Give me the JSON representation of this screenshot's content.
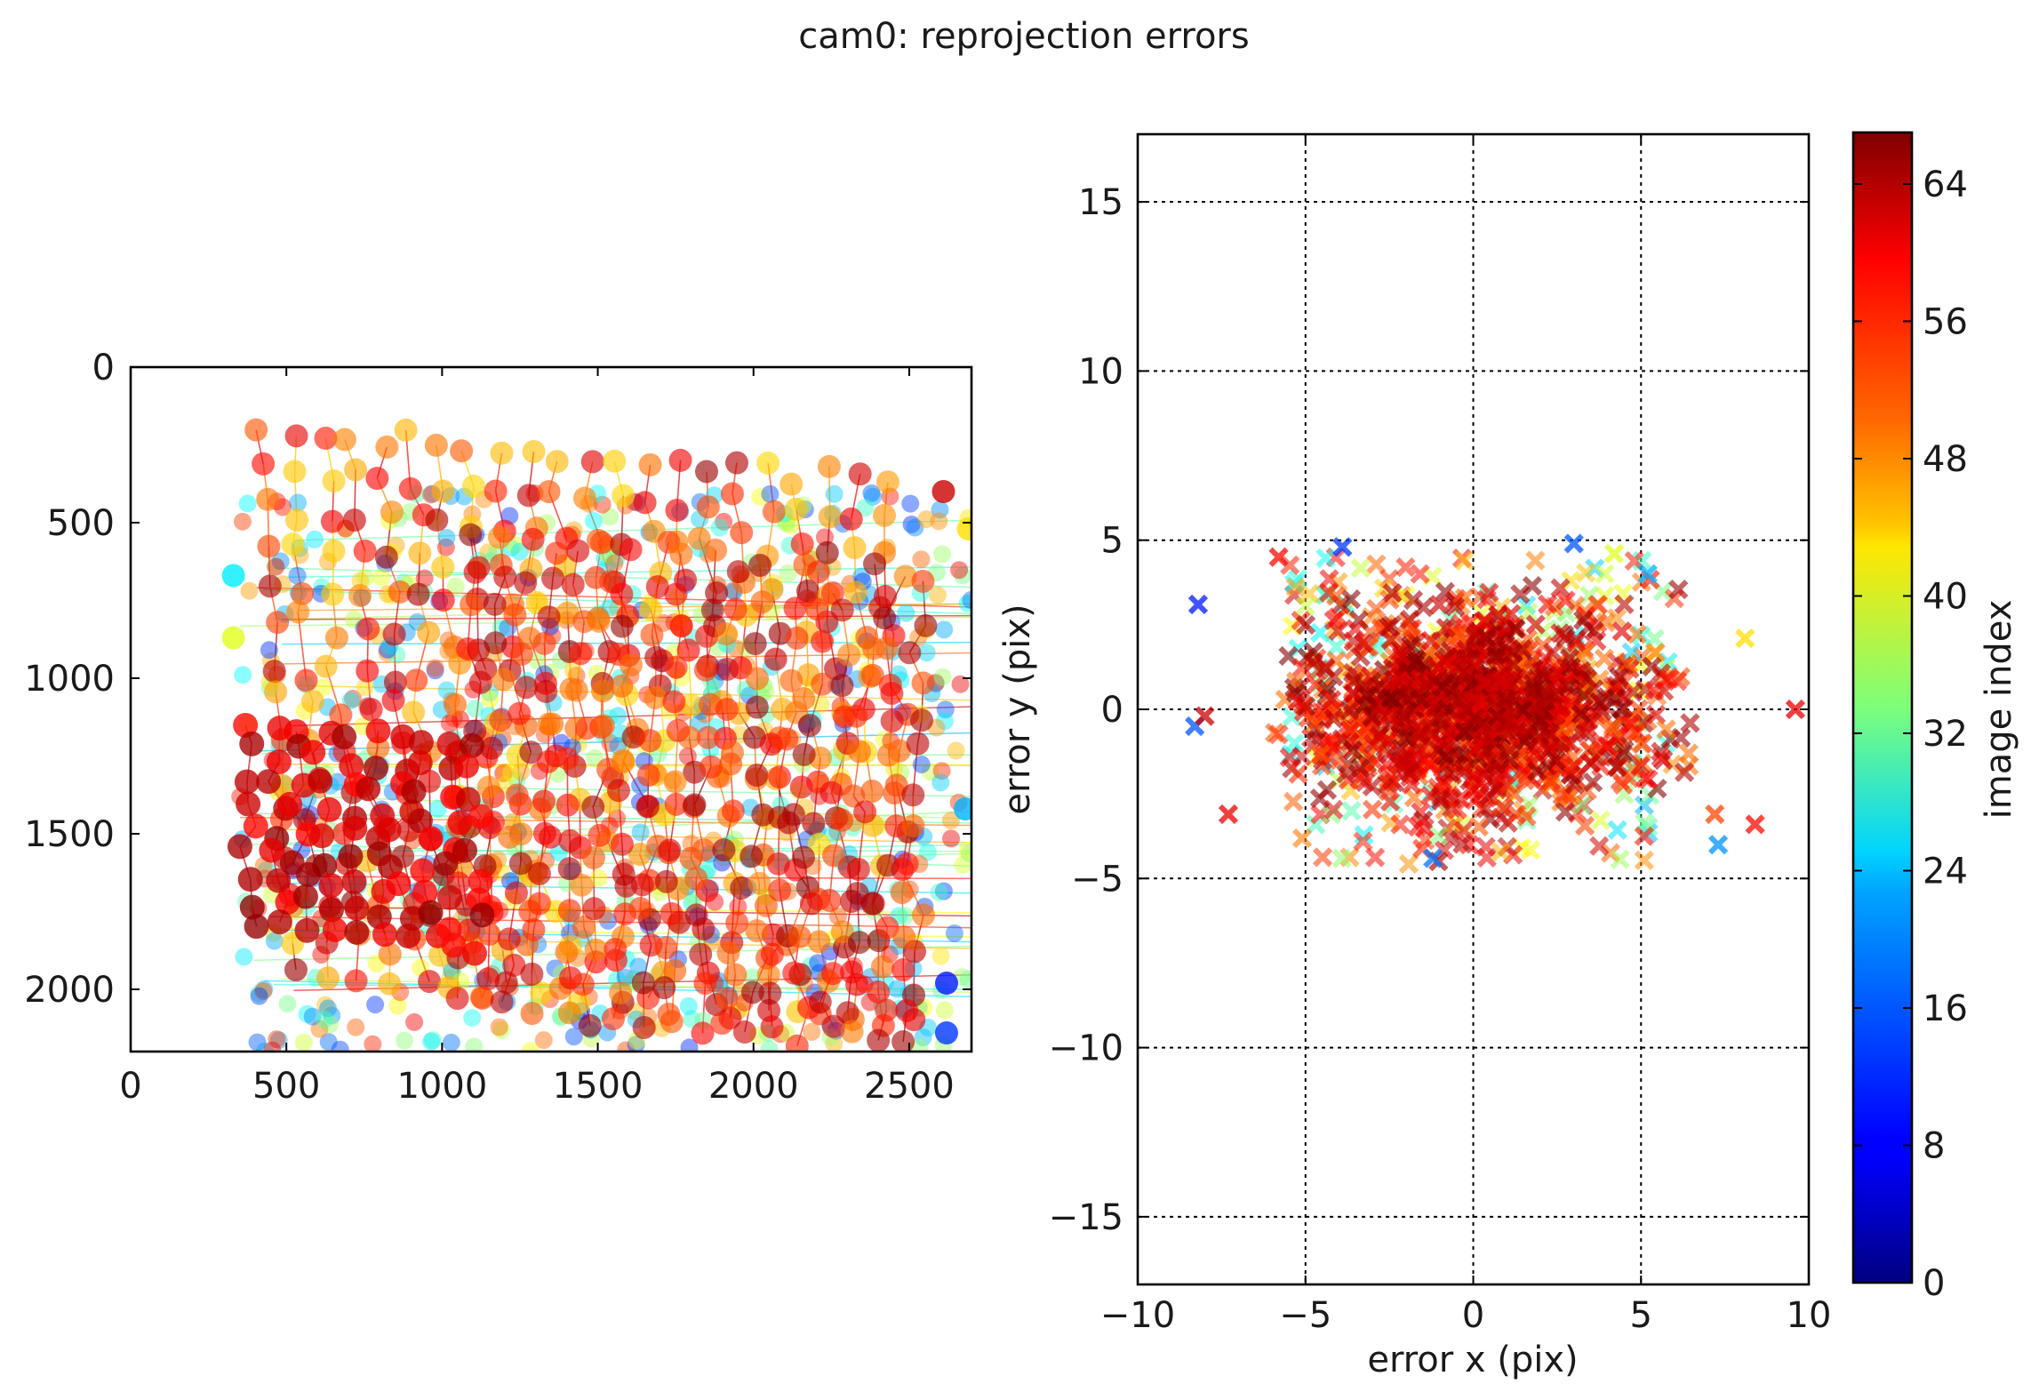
{
  "figure": {
    "title": "cam0: reprojection errors"
  },
  "chart_data": [
    {
      "type": "scatter",
      "subtype": "corner-tracks",
      "marker": "circle",
      "connected_lines": true,
      "x_range": [
        0,
        2700
      ],
      "y_range": [
        0,
        2200
      ],
      "y_inverted": true,
      "x_ticks": [
        "0",
        "500",
        "1000",
        "1500",
        "2000",
        "2500"
      ],
      "y_ticks": [
        "0",
        "500",
        "1000",
        "1500",
        "2000"
      ],
      "xlabel": "",
      "ylabel": "",
      "grid": false,
      "color_by": "image index",
      "point_regions": [
        {
          "x": [
            330,
            2700
          ],
          "y": [
            150,
            2200
          ],
          "index_range": [
            0,
            66
          ],
          "description": "all corner observations"
        },
        {
          "x": [
            300,
            1200
          ],
          "y": [
            1100,
            2000
          ],
          "index_range": [
            56,
            66
          ],
          "description": "dense dark-red grid"
        }
      ]
    },
    {
      "type": "scatter",
      "subtype": "error-distribution",
      "marker": "x",
      "x_range": [
        -10,
        10
      ],
      "y_range": [
        -17,
        17
      ],
      "x_ticks": [
        "−10",
        "−5",
        "0",
        "5",
        "10"
      ],
      "y_ticks": [
        "−15",
        "−10",
        "−5",
        "0",
        "5",
        "10",
        "15"
      ],
      "xlabel": "error x (pix)",
      "ylabel": "error y (pix)",
      "grid": true,
      "color_by": "image index",
      "bulk_cloud": {
        "x_range": [
          -5.5,
          6
        ],
        "y_range": [
          -4.6,
          4.6
        ]
      },
      "notable_points": [
        {
          "x": -8.2,
          "y": 3.1,
          "index": 10
        },
        {
          "x": -8.3,
          "y": -0.5,
          "index": 14
        },
        {
          "x": -8.0,
          "y": -0.2,
          "index": 62
        },
        {
          "x": 9.6,
          "y": 0.0,
          "index": 60
        },
        {
          "x": 8.4,
          "y": -3.4,
          "index": 58
        },
        {
          "x": 7.2,
          "y": -3.1,
          "index": 54
        },
        {
          "x": 7.3,
          "y": -4.0,
          "index": 18
        },
        {
          "x": -7.3,
          "y": -3.1,
          "index": 60
        },
        {
          "x": -3.9,
          "y": 4.8,
          "index": 12
        },
        {
          "x": 3.0,
          "y": 4.9,
          "index": 14
        },
        {
          "x": 5.2,
          "y": 4.0,
          "index": 20
        },
        {
          "x": -1.2,
          "y": -4.4,
          "index": 16
        },
        {
          "x": 8.1,
          "y": 2.1,
          "index": 44
        },
        {
          "x": -5.8,
          "y": 4.5,
          "index": 58
        },
        {
          "x": 4.2,
          "y": 4.6,
          "index": 40
        }
      ]
    }
  ],
  "colorbar": {
    "label": "image index",
    "ticks": [
      "0",
      "8",
      "16",
      "24",
      "32",
      "40",
      "48",
      "56",
      "64"
    ],
    "range": [
      0,
      67
    ]
  }
}
